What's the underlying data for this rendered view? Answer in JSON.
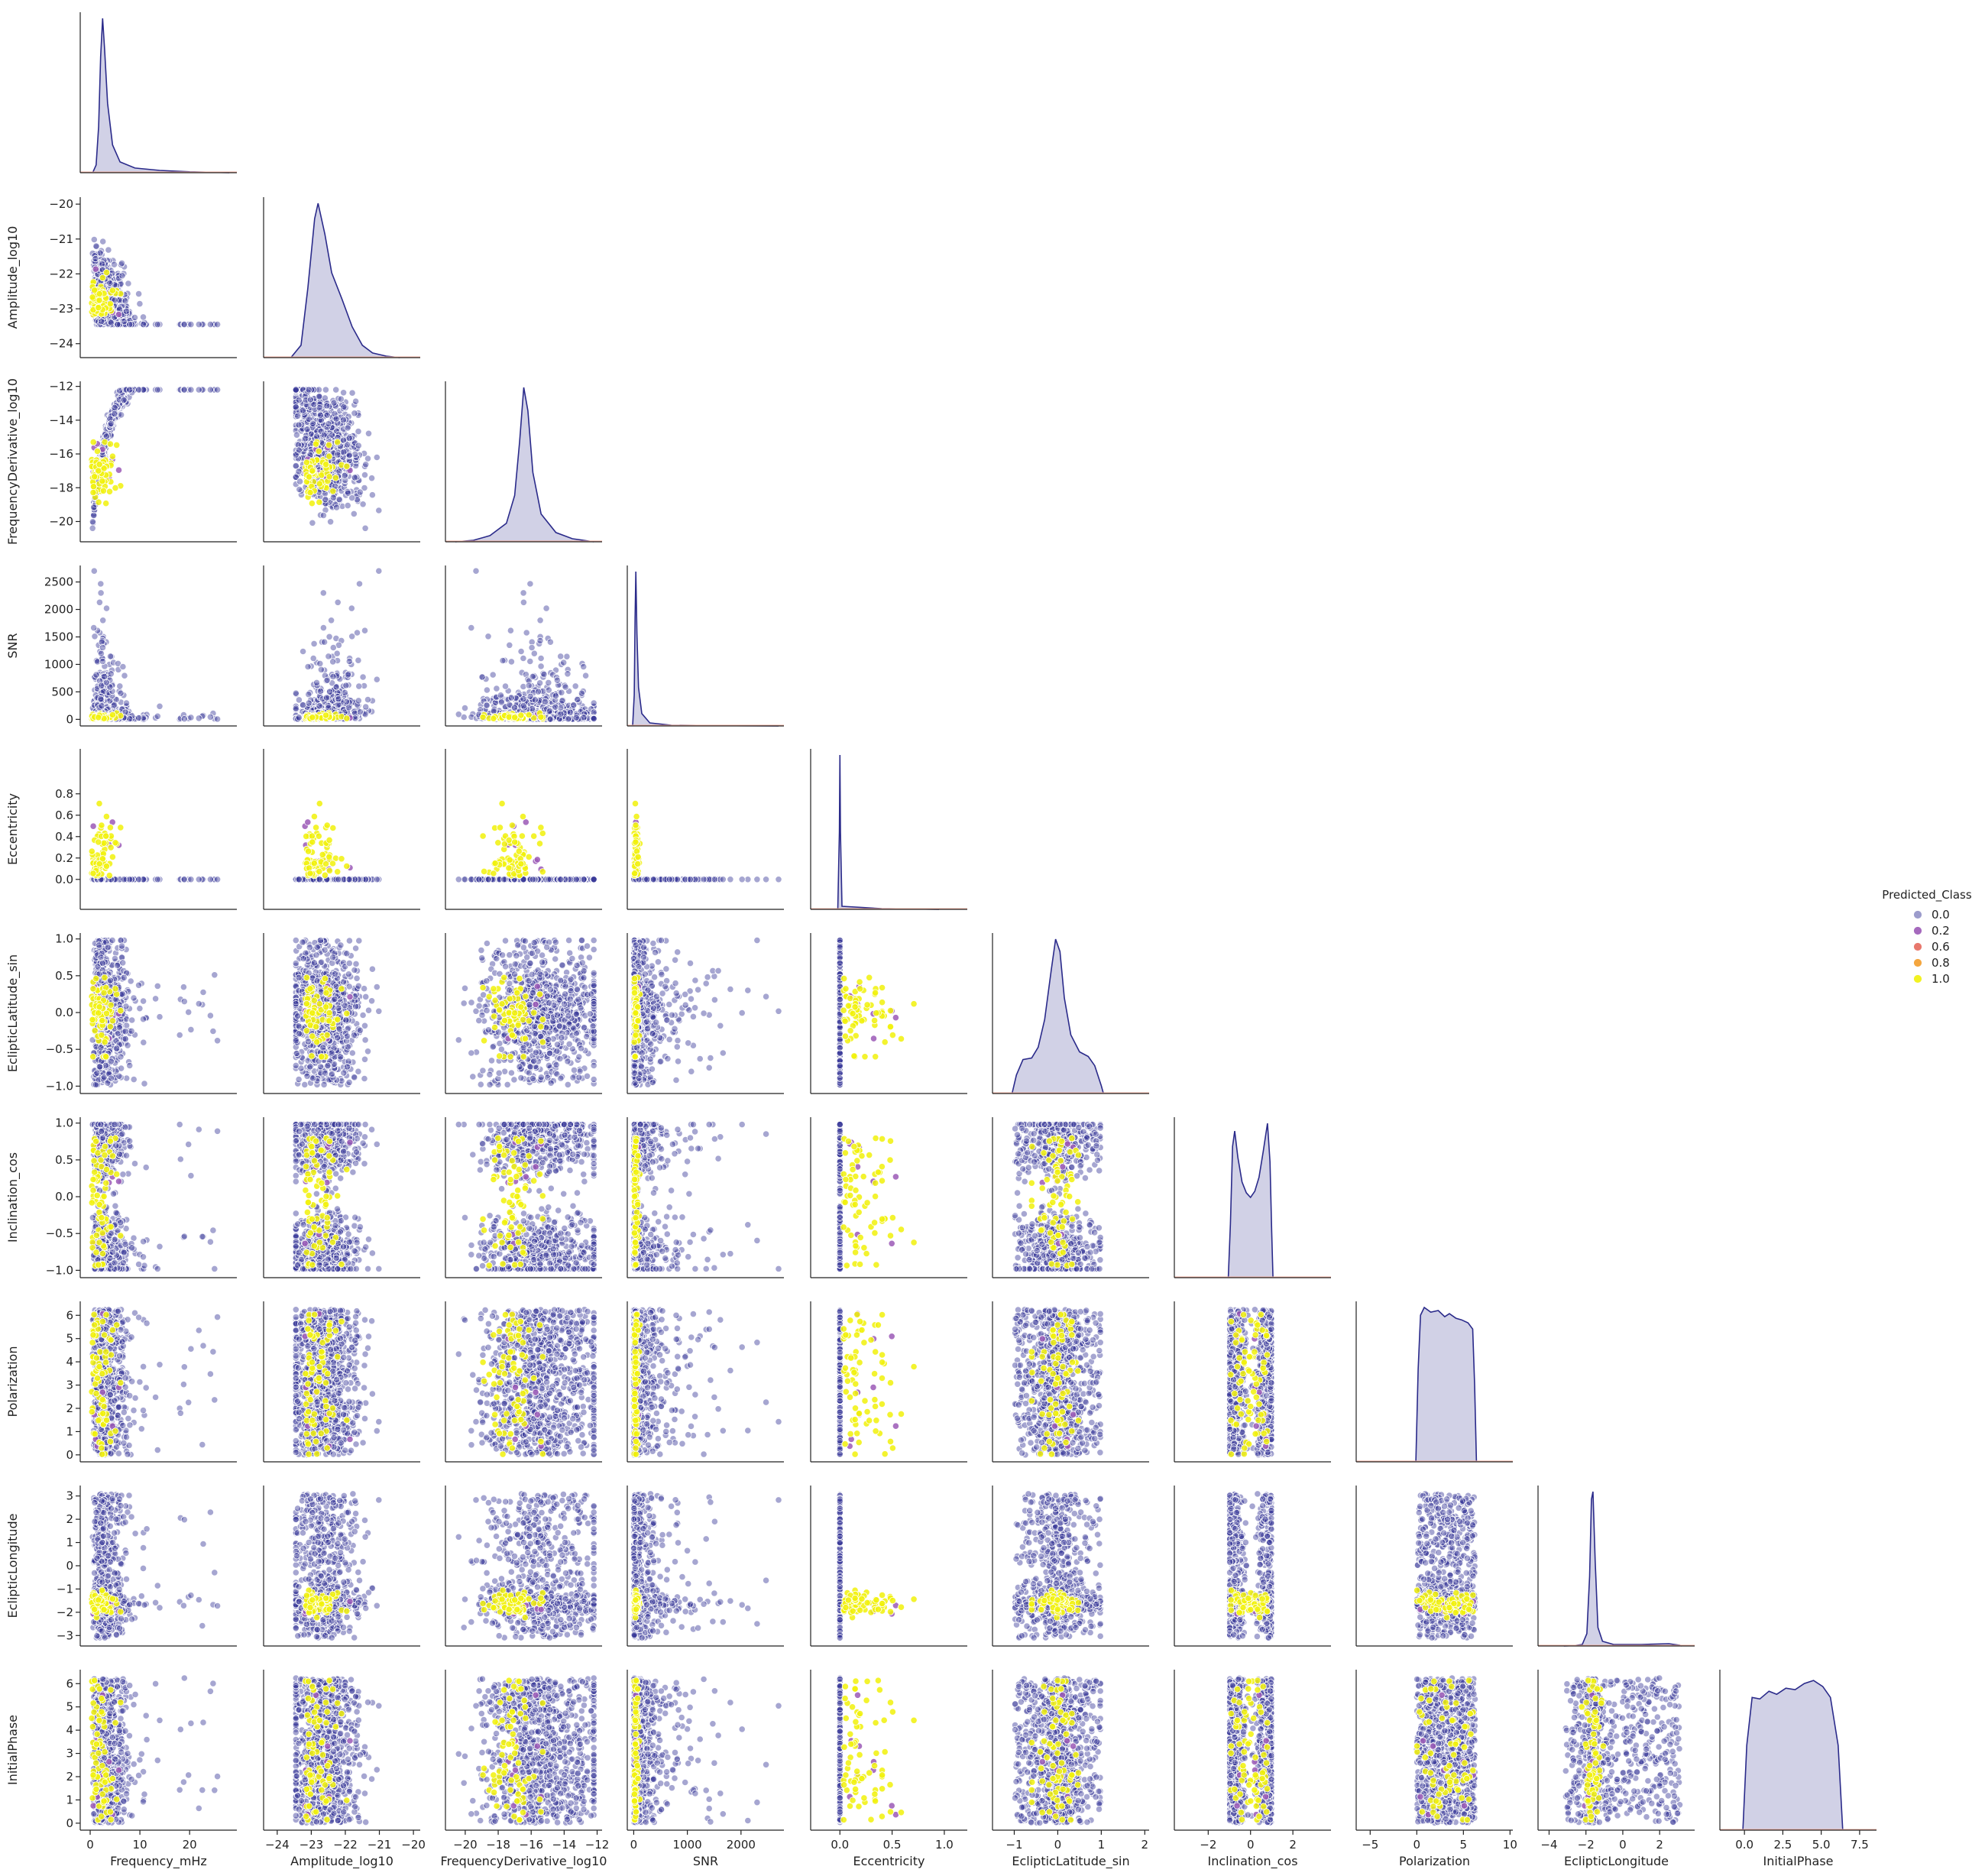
{
  "chart_data": {
    "type": "scatter",
    "subtype": "pairplot-lower-corner",
    "diagonal": "kde",
    "variables": [
      {
        "name": "Frequency_mHz",
        "lim": [
          -2,
          29.5
        ],
        "ticks": [
          0,
          10,
          20
        ],
        "tick_labels": [
          "0",
          "10",
          "20"
        ]
      },
      {
        "name": "Amplitude_log10",
        "lim": [
          -24.4,
          -19.8
        ],
        "ticks": [
          -24,
          -23,
          -22,
          -21,
          -20
        ],
        "tick_labels": [
          "−24",
          "−23",
          "−22",
          "−21",
          "−20"
        ]
      },
      {
        "name": "FrequencyDerivative_log10",
        "lim": [
          -21.2,
          -11.7
        ],
        "ticks": [
          -20,
          -18,
          -16,
          -14,
          -12
        ],
        "tick_labels": [
          "−20",
          "−18",
          "−16",
          "−14",
          "−12"
        ]
      },
      {
        "name": "SNR",
        "lim": [
          -120,
          2800
        ],
        "ticks": [
          0,
          500,
          1000,
          1500,
          2000,
          2500
        ],
        "tick_labels": [
          "0",
          "500",
          "1000",
          "1500",
          "2000",
          "2500"
        ],
        "x_ticks": [
          0,
          1000,
          2000
        ],
        "x_tick_labels": [
          "0",
          "1000",
          "2000"
        ]
      },
      {
        "name": "Eccentricity",
        "lim": [
          -0.28,
          1.22
        ],
        "ticks": [
          0.0,
          0.2,
          0.4,
          0.6,
          0.8
        ],
        "tick_labels": [
          "0.0",
          "0.2",
          "0.4",
          "0.6",
          "0.8"
        ],
        "x_ticks": [
          0.0,
          0.5,
          1.0
        ],
        "x_tick_labels": [
          "0.0",
          "0.5",
          "1.0"
        ]
      },
      {
        "name": "EclipticLatitude_sin",
        "lim": [
          -1.1,
          1.08
        ],
        "ticks": [
          -1.0,
          -0.5,
          0.0,
          0.5,
          1.0
        ],
        "tick_labels": [
          "−1.0",
          "−0.5",
          "0.0",
          "0.5",
          "1.0"
        ],
        "x_ticks": [
          -1,
          0,
          1,
          2
        ],
        "x_tick_labels": [
          "−1",
          "0",
          "1",
          "2"
        ],
        "x_lim": [
          -1.5,
          2.1
        ]
      },
      {
        "name": "Inclination_cos",
        "lim": [
          -1.1,
          1.08
        ],
        "ticks": [
          -1.0,
          -0.5,
          0.0,
          0.5,
          1.0
        ],
        "tick_labels": [
          "−1.0",
          "−0.5",
          "0.0",
          "0.5",
          "1.0"
        ],
        "x_ticks": [
          -2,
          0,
          2
        ],
        "x_tick_labels": [
          "−2",
          "0",
          "2"
        ],
        "x_lim": [
          -3.6,
          3.8
        ]
      },
      {
        "name": "Polarization",
        "lim": [
          -0.3,
          6.6
        ],
        "ticks": [
          0,
          1,
          2,
          3,
          4,
          5,
          6
        ],
        "tick_labels": [
          "0",
          "1",
          "2",
          "3",
          "4",
          "5",
          "6"
        ],
        "x_ticks": [
          -5,
          0,
          5,
          10
        ],
        "x_tick_labels": [
          "−5",
          "0",
          "5",
          "10"
        ],
        "x_lim": [
          -6.5,
          10.3
        ]
      },
      {
        "name": "EclipticLongitude",
        "lim": [
          -3.45,
          3.45
        ],
        "ticks": [
          -3,
          -2,
          -1,
          0,
          1,
          2,
          3
        ],
        "tick_labels": [
          "−3",
          "−2",
          "−1",
          "0",
          "1",
          "2",
          "3"
        ],
        "x_ticks": [
          -4,
          -2,
          0,
          2
        ],
        "x_tick_labels": [
          "−4",
          "−2",
          "0",
          "2"
        ],
        "x_lim": [
          -4.6,
          3.9
        ]
      },
      {
        "name": "InitialPhase",
        "lim": [
          -0.3,
          6.6
        ],
        "ticks": [
          0,
          1,
          2,
          3,
          4,
          5,
          6
        ],
        "tick_labels": [
          "0",
          "1",
          "2",
          "3",
          "4",
          "5",
          "6"
        ],
        "x_ticks": [
          0.0,
          2.5,
          5.0,
          7.5
        ],
        "x_tick_labels": [
          "0.0",
          "2.5",
          "5.0",
          "7.5"
        ],
        "x_lim": [
          -1.6,
          8.6
        ]
      }
    ],
    "hue": {
      "name": "Predicted_Class",
      "levels": [
        {
          "label": "0.0",
          "color": "#3a3a9a"
        },
        {
          "label": "0.2",
          "color": "#9b59b6"
        },
        {
          "label": "0.6",
          "color": "#e5695d"
        },
        {
          "label": "0.8",
          "color": "#f39c2a"
        },
        {
          "label": "1.0",
          "color": "#f1f10a"
        }
      ]
    },
    "kde_fill_color": "#c5c5e0",
    "kde_line_color": "#2a2a8a",
    "point_edge_color": "#ffffff",
    "legend_placement": "right, vertically centered",
    "grid": false,
    "kde_curves": [
      [
        [
          0.5,
          0
        ],
        [
          1.2,
          0.05
        ],
        [
          1.7,
          0.3
        ],
        [
          2.1,
          0.75
        ],
        [
          2.5,
          1.0
        ],
        [
          2.9,
          0.8
        ],
        [
          3.5,
          0.45
        ],
        [
          4.5,
          0.18
        ],
        [
          6,
          0.07
        ],
        [
          9,
          0.03
        ],
        [
          14,
          0.015
        ],
        [
          20,
          0.006
        ],
        [
          28,
          0
        ]
      ],
      [
        [
          -23.6,
          0
        ],
        [
          -23.3,
          0.08
        ],
        [
          -23.1,
          0.45
        ],
        [
          -22.9,
          0.9
        ],
        [
          -22.8,
          1.0
        ],
        [
          -22.6,
          0.8
        ],
        [
          -22.4,
          0.55
        ],
        [
          -22.1,
          0.38
        ],
        [
          -21.8,
          0.2
        ],
        [
          -21.5,
          0.08
        ],
        [
          -21.2,
          0.03
        ],
        [
          -20.8,
          0.01
        ],
        [
          -20.4,
          0
        ]
      ],
      [
        [
          -20.6,
          0
        ],
        [
          -19.5,
          0.01
        ],
        [
          -18.5,
          0.04
        ],
        [
          -17.5,
          0.12
        ],
        [
          -17.0,
          0.3
        ],
        [
          -16.7,
          0.65
        ],
        [
          -16.45,
          1.0
        ],
        [
          -16.2,
          0.85
        ],
        [
          -15.9,
          0.45
        ],
        [
          -15.4,
          0.18
        ],
        [
          -14.5,
          0.06
        ],
        [
          -13.5,
          0.02
        ],
        [
          -12.2,
          0
        ]
      ],
      [
        [
          -20,
          0
        ],
        [
          10,
          0.2
        ],
        [
          25,
          0.7
        ],
        [
          40,
          1.0
        ],
        [
          60,
          0.6
        ],
        [
          90,
          0.25
        ],
        [
          150,
          0.08
        ],
        [
          300,
          0.02
        ],
        [
          700,
          0.005
        ],
        [
          1500,
          0.002
        ],
        [
          2700,
          0
        ]
      ],
      [
        [
          -0.02,
          0
        ],
        [
          -0.005,
          0.5
        ],
        [
          0,
          1.0
        ],
        [
          0.005,
          0.5
        ],
        [
          0.02,
          0.02
        ],
        [
          0.4,
          0.005
        ],
        [
          0.95,
          0
        ]
      ],
      [
        [
          -1.05,
          0
        ],
        [
          -0.95,
          0.12
        ],
        [
          -0.8,
          0.22
        ],
        [
          -0.6,
          0.23
        ],
        [
          -0.45,
          0.3
        ],
        [
          -0.3,
          0.48
        ],
        [
          -0.15,
          0.8
        ],
        [
          -0.05,
          1.0
        ],
        [
          0.05,
          0.92
        ],
        [
          0.15,
          0.62
        ],
        [
          0.3,
          0.38
        ],
        [
          0.5,
          0.27
        ],
        [
          0.7,
          0.24
        ],
        [
          0.85,
          0.18
        ],
        [
          1.0,
          0.05
        ],
        [
          1.05,
          0
        ]
      ],
      [
        [
          -1.05,
          0
        ],
        [
          -0.95,
          0.35
        ],
        [
          -0.85,
          0.85
        ],
        [
          -0.75,
          0.95
        ],
        [
          -0.6,
          0.78
        ],
        [
          -0.4,
          0.62
        ],
        [
          -0.2,
          0.55
        ],
        [
          0,
          0.52
        ],
        [
          0.2,
          0.56
        ],
        [
          0.4,
          0.65
        ],
        [
          0.6,
          0.82
        ],
        [
          0.8,
          1.0
        ],
        [
          0.92,
          0.75
        ],
        [
          1.0,
          0.3
        ],
        [
          1.06,
          0
        ]
      ],
      [
        [
          -0.1,
          0
        ],
        [
          0.15,
          0.6
        ],
        [
          0.4,
          0.95
        ],
        [
          0.8,
          1.0
        ],
        [
          1.5,
          0.97
        ],
        [
          2.3,
          0.98
        ],
        [
          3.0,
          0.94
        ],
        [
          3.5,
          0.96
        ],
        [
          4.2,
          0.93
        ],
        [
          4.8,
          0.92
        ],
        [
          5.5,
          0.9
        ],
        [
          6.0,
          0.86
        ],
        [
          6.2,
          0.5
        ],
        [
          6.4,
          0
        ]
      ],
      [
        [
          -3.2,
          0
        ],
        [
          -2.6,
          0.003
        ],
        [
          -2.2,
          0.01
        ],
        [
          -1.95,
          0.08
        ],
        [
          -1.8,
          0.45
        ],
        [
          -1.7,
          0.95
        ],
        [
          -1.62,
          1.0
        ],
        [
          -1.5,
          0.55
        ],
        [
          -1.35,
          0.12
        ],
        [
          -1.1,
          0.03
        ],
        [
          -0.5,
          0.01
        ],
        [
          1.0,
          0.01
        ],
        [
          2.5,
          0.015
        ],
        [
          3.1,
          0.005
        ],
        [
          3.2,
          0
        ]
      ],
      [
        [
          -0.1,
          0
        ],
        [
          0.15,
          0.55
        ],
        [
          0.5,
          0.86
        ],
        [
          1.0,
          0.85
        ],
        [
          1.6,
          0.9
        ],
        [
          2.1,
          0.88
        ],
        [
          2.7,
          0.92
        ],
        [
          3.3,
          0.91
        ],
        [
          3.9,
          0.95
        ],
        [
          4.5,
          0.97
        ],
        [
          5.1,
          0.93
        ],
        [
          5.6,
          0.86
        ],
        [
          6.1,
          0.55
        ],
        [
          6.4,
          0
        ]
      ]
    ]
  }
}
